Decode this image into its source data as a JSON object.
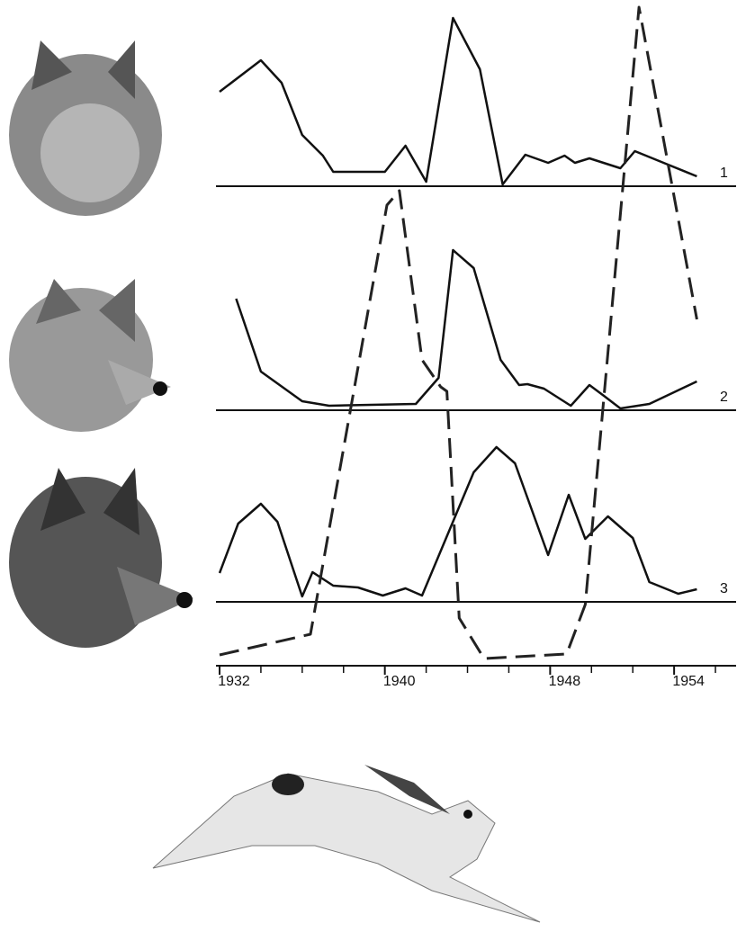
{
  "chart_data": [
    {
      "type": "line",
      "label": "1",
      "xlim": [
        1932,
        1957
      ],
      "ylim": [
        0,
        20.7
      ],
      "series": [
        {
          "color": "#111111",
          "dash": false,
          "x": [
            1932,
            1934,
            1935,
            1936,
            1937,
            1937.5,
            1940,
            1941,
            1942,
            1943.3,
            1944.6,
            1945.7,
            1946.8,
            1947.9,
            1948.7,
            1949.2,
            1949.9,
            1951.4,
            1952.1,
            1953.6,
            1955.1
          ],
          "values": [
            10.5,
            14,
            11.5,
            5.7,
            3.4,
            1.6,
            1.6,
            4.5,
            0.5,
            18.7,
            13,
            0.2,
            3.5,
            2.6,
            3.4,
            2.6,
            3.1,
            2,
            3.9,
            2.5,
            1.1
          ]
        }
      ]
    },
    {
      "type": "line",
      "label": "2",
      "xlim": [
        1932,
        1957
      ],
      "ylim": [
        0,
        45.6
      ],
      "series": [
        {
          "color": "#111111",
          "dash": false,
          "x": [
            1932.8,
            1934,
            1936,
            1937.3,
            1941.5,
            1942.6,
            1943.3,
            1944.3,
            1945.6,
            1946.5,
            1946.9,
            1947.7,
            1949,
            1949.9,
            1950.6,
            1951.4,
            1952.8,
            1955.1
          ],
          "values": [
            12.4,
            4.3,
            1,
            0.5,
            0.7,
            3.6,
            17.8,
            15.8,
            5.6,
            2.8,
            2.9,
            2.4,
            0.5,
            2.8,
            1.6,
            0.2,
            0.7,
            3.2
          ]
        }
      ]
    },
    {
      "type": "line",
      "label": "3",
      "xlim": [
        1932,
        1957
      ],
      "ylim": [
        0,
        66.9
      ],
      "series": [
        {
          "color": "#111111",
          "dash": false,
          "x": [
            1932,
            1932.9,
            1934,
            1934.8,
            1936,
            1936.5,
            1937.5,
            1938.7,
            1939.9,
            1941,
            1941.8,
            1944.3,
            1945.4,
            1946.3,
            1947.9,
            1948.9,
            1949.7,
            1950.8,
            1952,
            1952.8,
            1954.2,
            1955.1
          ],
          "values": [
            3.2,
            8.7,
            10.9,
            8.9,
            0.6,
            3.3,
            1.8,
            1.6,
            0.7,
            1.5,
            0.7,
            14.4,
            17.2,
            15.4,
            5.2,
            11.9,
            7,
            9.5,
            7.1,
            2.2,
            0.9,
            1.4
          ]
        }
      ]
    },
    {
      "type": "line",
      "xlim": [
        1932,
        1957
      ],
      "ylim": [
        0,
        73.5
      ],
      "xticks": [
        1932,
        1940,
        1948,
        1954
      ],
      "xminor": [
        1934,
        1936,
        1938,
        1942,
        1944,
        1946,
        1950,
        1952,
        1956
      ],
      "series": [
        {
          "color": "#222222",
          "dash": true,
          "x": [
            1932,
            1936.4,
            1940.1,
            1940.7,
            1941.8,
            1942.7,
            1943,
            1943.6,
            1944.8,
            1948.8,
            1949.7,
            1952.3,
            1955.1
          ],
          "values": [
            0.7,
            3,
            50.7,
            52.3,
            33.5,
            30.5,
            30,
            4.8,
            0.3,
            0.8,
            6.3,
            72.7,
            38
          ]
        }
      ]
    }
  ]
}
